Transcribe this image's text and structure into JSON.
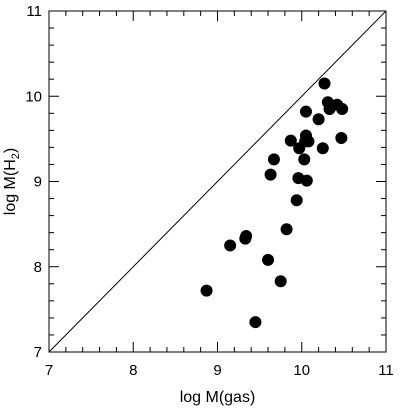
{
  "chart_data": {
    "type": "scatter",
    "title": "",
    "xlabel": "log M(gas)",
    "ylabel_parts": {
      "main": "log M(H",
      "sub": "2",
      "close": ")"
    },
    "xlim": [
      7,
      11
    ],
    "ylim": [
      7,
      11
    ],
    "x_ticks": [
      7,
      8,
      9,
      10,
      11
    ],
    "y_ticks": [
      7,
      8,
      9,
      10,
      11
    ],
    "x_tick_labels": [
      "7",
      "8",
      "9",
      "10",
      "11"
    ],
    "y_tick_labels": [
      "7",
      "8",
      "9",
      "10",
      "11"
    ],
    "minor_tick_step": 0.2,
    "grid": false,
    "reference_line": {
      "label": "",
      "from": [
        7,
        7
      ],
      "to": [
        11,
        11
      ]
    },
    "marker_color": "#000000",
    "points": [
      {
        "x": 8.87,
        "y": 7.72
      },
      {
        "x": 9.15,
        "y": 8.25
      },
      {
        "x": 9.33,
        "y": 8.33
      },
      {
        "x": 9.34,
        "y": 8.36
      },
      {
        "x": 9.45,
        "y": 7.35
      },
      {
        "x": 9.6,
        "y": 8.08
      },
      {
        "x": 9.63,
        "y": 9.08
      },
      {
        "x": 9.67,
        "y": 9.26
      },
      {
        "x": 9.75,
        "y": 7.83
      },
      {
        "x": 9.82,
        "y": 8.44
      },
      {
        "x": 9.87,
        "y": 9.48
      },
      {
        "x": 9.94,
        "y": 8.78
      },
      {
        "x": 9.96,
        "y": 9.04
      },
      {
        "x": 9.97,
        "y": 9.39
      },
      {
        "x": 10.03,
        "y": 9.26
      },
      {
        "x": 10.04,
        "y": 9.47
      },
      {
        "x": 10.05,
        "y": 9.82
      },
      {
        "x": 10.05,
        "y": 9.54
      },
      {
        "x": 10.06,
        "y": 9.01
      },
      {
        "x": 10.08,
        "y": 9.47
      },
      {
        "x": 10.2,
        "y": 9.73
      },
      {
        "x": 10.25,
        "y": 9.39
      },
      {
        "x": 10.27,
        "y": 10.15
      },
      {
        "x": 10.31,
        "y": 9.93
      },
      {
        "x": 10.33,
        "y": 9.85
      },
      {
        "x": 10.42,
        "y": 9.9
      },
      {
        "x": 10.47,
        "y": 9.51
      },
      {
        "x": 10.48,
        "y": 9.85
      }
    ]
  }
}
